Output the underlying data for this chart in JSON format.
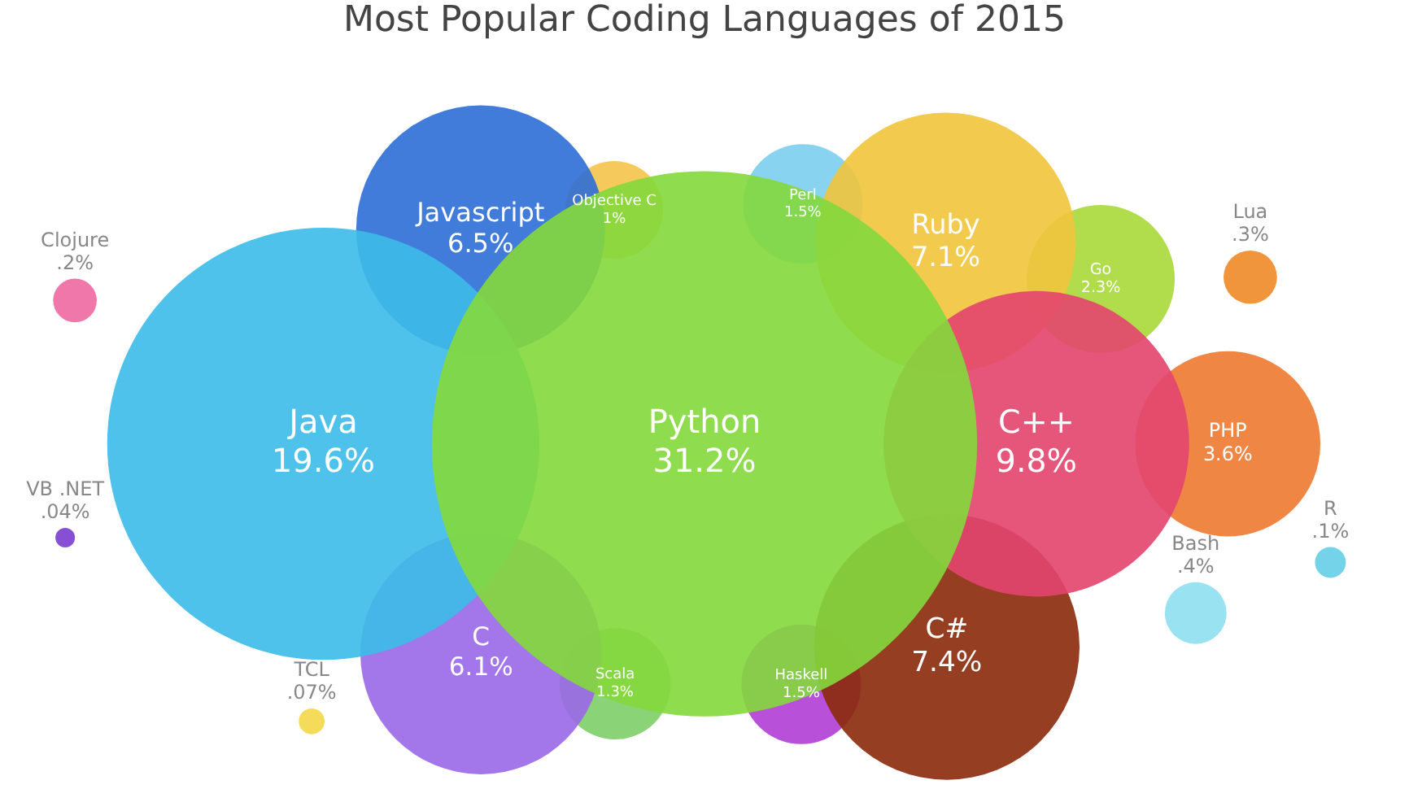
{
  "chart_data": {
    "type": "other",
    "title": "Most Popular Coding Languages of 2015",
    "categories": [
      "Python",
      "Java",
      "C++",
      "C#",
      "Ruby",
      "Javascript",
      "C",
      "PHP",
      "Go",
      "Perl",
      "Haskell",
      "Scala",
      "Objective C",
      "Bash",
      "Lua",
      "Clojure",
      "R",
      "TCL",
      "VB .NET"
    ],
    "values": [
      31.2,
      19.6,
      9.8,
      7.4,
      7.1,
      6.5,
      6.1,
      3.6,
      2.3,
      1.5,
      1.5,
      1.3,
      1,
      0.4,
      0.3,
      0.2,
      0.1,
      0.07,
      0.04
    ],
    "value_labels": [
      "31.2%",
      "19.6%",
      "9.8%",
      "7.4%",
      "7.1%",
      "6.5%",
      "6.1%",
      "3.6%",
      "2.3%",
      "1.5%",
      "1.5%",
      "1.3%",
      "1%",
      ".4%",
      ".3%",
      ".2%",
      ".1%",
      ".07%",
      ".04%"
    ],
    "colors": [
      "#84d93c",
      "#3cbce8",
      "#e4456e",
      "#8a2b0c",
      "#f0c53c",
      "#2f6fd6",
      "#9a68e8",
      "#ef7a32",
      "#a9d93a",
      "#7ccfef",
      "#b23fd6",
      "#7fcf6a",
      "#f4c44c",
      "#8fdff0",
      "#f08a2a",
      "#ee6aa2",
      "#66cfe6",
      "#f3d84a",
      "#7b3fd0"
    ]
  }
}
